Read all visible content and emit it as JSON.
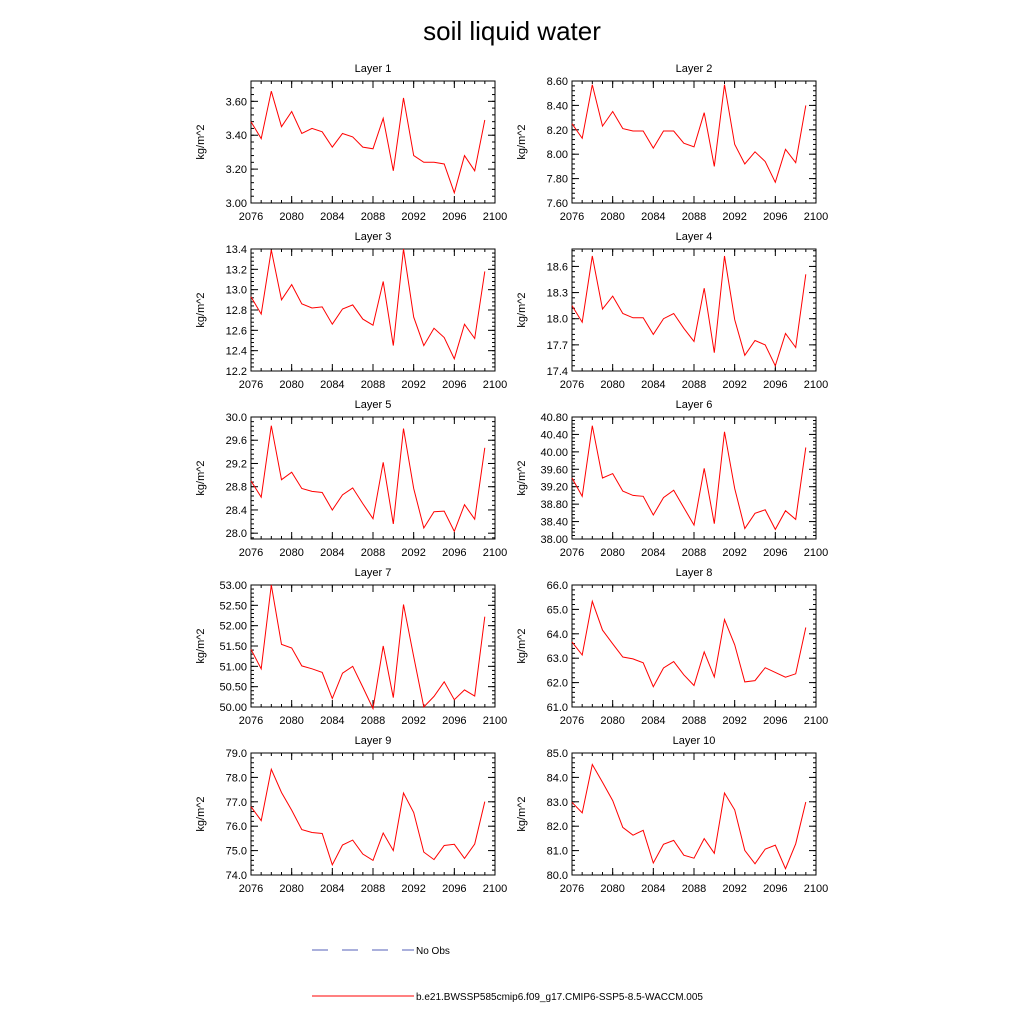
{
  "title": "soil liquid water",
  "legend": [
    {
      "label": "No Obs",
      "style": "dashed",
      "color": "#5560b8"
    },
    {
      "label": "b.e21.BWSSP585cmip6.f09_g17.CMIP6-SSP5-8.5-WACCM.005",
      "style": "solid",
      "color": "#ff0000"
    }
  ],
  "chart_data": {
    "type": "line",
    "x": [
      2076,
      2077,
      2078,
      2079,
      2080,
      2081,
      2082,
      2083,
      2084,
      2085,
      2086,
      2087,
      2088,
      2089,
      2090,
      2091,
      2092,
      2093,
      2094,
      2095,
      2096,
      2097,
      2098,
      2099
    ],
    "x_ticks": [
      "2076",
      "2080",
      "2084",
      "2088",
      "2092",
      "2096",
      "2100"
    ],
    "xlim": [
      2076,
      2100
    ],
    "series_color": "#ff0000",
    "panels": [
      {
        "title": "Layer 1",
        "ylabel": "kg/m^2",
        "ylim": [
          3.0,
          3.72
        ],
        "yticks": [
          "3.00",
          "3.20",
          "3.40",
          "3.60"
        ],
        "ytick_vals": [
          3.0,
          3.2,
          3.4,
          3.6
        ],
        "values": [
          3.48,
          3.38,
          3.66,
          3.45,
          3.54,
          3.41,
          3.44,
          3.42,
          3.33,
          3.41,
          3.39,
          3.33,
          3.32,
          3.5,
          3.19,
          3.62,
          3.28,
          3.24,
          3.24,
          3.23,
          3.06,
          3.28,
          3.19,
          3.49
        ]
      },
      {
        "title": "Layer 2",
        "ylabel": "kg/m^2",
        "ylim": [
          7.6,
          8.6
        ],
        "yticks": [
          "7.60",
          "7.80",
          "8.00",
          "8.20",
          "8.40",
          "8.60"
        ],
        "ytick_vals": [
          7.6,
          7.8,
          8.0,
          8.2,
          8.4,
          8.6
        ],
        "values": [
          8.25,
          8.13,
          8.57,
          8.23,
          8.35,
          8.21,
          8.19,
          8.19,
          8.05,
          8.19,
          8.19,
          8.09,
          8.06,
          8.34,
          7.9,
          8.57,
          8.08,
          7.92,
          8.02,
          7.94,
          7.77,
          8.04,
          7.93,
          8.4
        ]
      },
      {
        "title": "Layer 3",
        "ylabel": "kg/m^2",
        "ylim": [
          12.2,
          13.4
        ],
        "yticks": [
          "12.2",
          "12.4",
          "12.6",
          "12.8",
          "13.0",
          "13.2",
          "13.4"
        ],
        "ytick_vals": [
          12.2,
          12.4,
          12.6,
          12.8,
          13.0,
          13.2,
          13.4
        ],
        "values": [
          12.93,
          12.76,
          13.39,
          12.9,
          13.05,
          12.86,
          12.82,
          12.83,
          12.66,
          12.81,
          12.85,
          12.71,
          12.65,
          13.08,
          12.45,
          13.4,
          12.73,
          12.45,
          12.62,
          12.53,
          12.32,
          12.66,
          12.52,
          13.18
        ]
      },
      {
        "title": "Layer 4",
        "ylabel": "kg/m^2",
        "ylim": [
          17.4,
          18.8
        ],
        "yticks": [
          "17.4",
          "17.7",
          "18.0",
          "18.3",
          "18.6"
        ],
        "ytick_vals": [
          17.4,
          17.7,
          18.0,
          18.3,
          18.6
        ],
        "values": [
          18.15,
          17.96,
          18.72,
          18.11,
          18.26,
          18.06,
          18.01,
          18.01,
          17.82,
          18.0,
          18.06,
          17.89,
          17.74,
          18.35,
          17.61,
          18.72,
          17.99,
          17.58,
          17.75,
          17.7,
          17.46,
          17.83,
          17.67,
          18.51
        ]
      },
      {
        "title": "Layer 5",
        "ylabel": "kg/m^2",
        "ylim": [
          27.9,
          30.0
        ],
        "yticks": [
          "28.0",
          "28.4",
          "28.8",
          "29.2",
          "29.6",
          "30.0"
        ],
        "ytick_vals": [
          28.0,
          28.4,
          28.8,
          29.2,
          29.6,
          30.0
        ],
        "values": [
          28.9,
          28.62,
          29.85,
          28.92,
          29.05,
          28.77,
          28.72,
          28.7,
          28.4,
          28.66,
          28.78,
          28.51,
          28.25,
          29.22,
          28.16,
          29.8,
          28.77,
          28.09,
          28.37,
          28.38,
          28.03,
          28.49,
          28.24,
          29.47
        ]
      },
      {
        "title": "Layer 6",
        "ylabel": "kg/m^2",
        "ylim": [
          38.0,
          40.8
        ],
        "yticks": [
          "38.00",
          "38.40",
          "38.80",
          "39.20",
          "39.60",
          "40.00",
          "40.40",
          "40.80"
        ],
        "ytick_vals": [
          38.0,
          38.4,
          38.8,
          39.2,
          39.6,
          40.0,
          40.4,
          40.8
        ],
        "values": [
          39.4,
          38.98,
          40.6,
          39.4,
          39.5,
          39.1,
          39.0,
          38.98,
          38.55,
          38.95,
          39.12,
          38.72,
          38.32,
          39.62,
          38.35,
          40.46,
          39.16,
          38.24,
          38.59,
          38.67,
          38.22,
          38.65,
          38.45,
          40.1
        ]
      },
      {
        "title": "Layer 7",
        "ylabel": "kg/m^2",
        "ylim": [
          50.0,
          53.0
        ],
        "yticks": [
          "50.00",
          "50.50",
          "51.00",
          "51.50",
          "52.00",
          "52.50",
          "53.00"
        ],
        "ytick_vals": [
          50.0,
          50.5,
          51.0,
          51.5,
          52.0,
          52.5,
          53.0
        ],
        "values": [
          51.42,
          50.94,
          53.0,
          51.54,
          51.45,
          51.01,
          50.94,
          50.85,
          50.21,
          50.83,
          51.0,
          50.49,
          49.96,
          51.5,
          50.23,
          52.52,
          51.24,
          50.0,
          50.26,
          50.62,
          50.18,
          50.42,
          50.27,
          52.22
        ]
      },
      {
        "title": "Layer 8",
        "ylabel": "kg/m^2",
        "ylim": [
          61.0,
          66.0
        ],
        "yticks": [
          "61.0",
          "62.0",
          "63.0",
          "64.0",
          "65.0",
          "66.0"
        ],
        "ytick_vals": [
          61.0,
          62.0,
          63.0,
          64.0,
          65.0,
          66.0
        ],
        "values": [
          63.67,
          63.13,
          65.33,
          64.15,
          63.59,
          63.05,
          62.97,
          62.81,
          61.83,
          62.6,
          62.86,
          62.32,
          61.88,
          63.26,
          62.23,
          64.58,
          63.55,
          62.03,
          62.08,
          62.61,
          62.42,
          62.22,
          62.36,
          64.26
        ]
      },
      {
        "title": "Layer 9",
        "ylabel": "kg/m^2",
        "ylim": [
          74.0,
          79.0
        ],
        "yticks": [
          "74.0",
          "75.0",
          "76.0",
          "77.0",
          "78.0",
          "79.0"
        ],
        "ytick_vals": [
          74.0,
          75.0,
          76.0,
          77.0,
          78.0,
          79.0
        ],
        "values": [
          76.8,
          76.23,
          78.33,
          77.38,
          76.65,
          75.86,
          75.74,
          75.7,
          74.42,
          75.23,
          75.43,
          74.86,
          74.6,
          75.72,
          75.0,
          77.36,
          76.56,
          74.94,
          74.63,
          75.21,
          75.26,
          74.68,
          75.27,
          77.01
        ]
      },
      {
        "title": "Layer 10",
        "ylabel": "kg/m^2",
        "ylim": [
          80.0,
          85.0
        ],
        "yticks": [
          "80.0",
          "81.0",
          "82.0",
          "83.0",
          "84.0",
          "85.0"
        ],
        "ytick_vals": [
          80.0,
          81.0,
          82.0,
          83.0,
          84.0,
          85.0
        ],
        "values": [
          82.98,
          82.55,
          84.53,
          83.8,
          83.05,
          81.95,
          81.63,
          81.83,
          80.49,
          81.26,
          81.42,
          80.81,
          80.69,
          81.49,
          80.89,
          83.36,
          82.67,
          81.01,
          80.46,
          81.06,
          81.22,
          80.26,
          81.28,
          82.99
        ]
      }
    ]
  }
}
